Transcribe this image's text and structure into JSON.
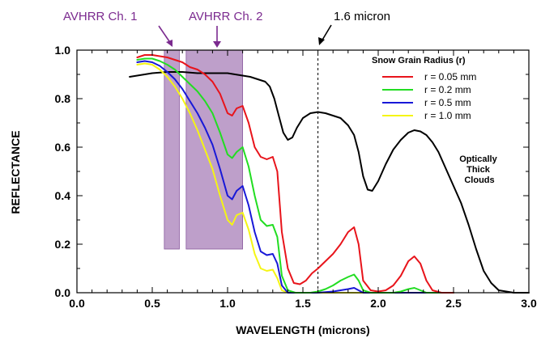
{
  "chart_data": {
    "type": "line",
    "xlabel": "WAVELENGTH (microns)",
    "ylabel": "REFLECTANCE",
    "xlim": [
      0.0,
      3.0
    ],
    "ylim": [
      0.0,
      1.0
    ],
    "x_ticks": [
      "0.0",
      "0.5",
      "1.0",
      "1.5",
      "2.0",
      "2.5",
      "3.0"
    ],
    "y_ticks": [
      "0.0",
      "0.2",
      "0.4",
      "0.6",
      "0.8",
      "1.0"
    ],
    "grid": false,
    "legend_title": "Snow Grain Radius (r)",
    "legend_position": "top-right",
    "bands": [
      {
        "label": "AVHRR Ch. 1",
        "x": [
          0.58,
          0.68
        ],
        "y": [
          0.18,
          1.0
        ],
        "color": "#a87fb8"
      },
      {
        "label": "AVHRR Ch. 2",
        "x": [
          0.725,
          1.1
        ],
        "y": [
          0.18,
          1.0
        ],
        "color": "#a87fb8"
      }
    ],
    "reference_line": {
      "label": "1.6 micron",
      "x": 1.6
    },
    "cloud_label": "Optically\nThick\nClouds",
    "series": [
      {
        "name": "r = 0.05 mm",
        "color": "#e8141b",
        "points": [
          [
            0.4,
            0.97
          ],
          [
            0.45,
            0.98
          ],
          [
            0.5,
            0.98
          ],
          [
            0.55,
            0.975
          ],
          [
            0.6,
            0.97
          ],
          [
            0.65,
            0.96
          ],
          [
            0.7,
            0.95
          ],
          [
            0.75,
            0.93
          ],
          [
            0.8,
            0.92
          ],
          [
            0.85,
            0.9
          ],
          [
            0.9,
            0.87
          ],
          [
            0.95,
            0.82
          ],
          [
            1.0,
            0.74
          ],
          [
            1.03,
            0.73
          ],
          [
            1.06,
            0.76
          ],
          [
            1.1,
            0.77
          ],
          [
            1.14,
            0.7
          ],
          [
            1.18,
            0.6
          ],
          [
            1.22,
            0.56
          ],
          [
            1.26,
            0.55
          ],
          [
            1.3,
            0.56
          ],
          [
            1.33,
            0.5
          ],
          [
            1.36,
            0.25
          ],
          [
            1.4,
            0.1
          ],
          [
            1.44,
            0.04
          ],
          [
            1.48,
            0.035
          ],
          [
            1.52,
            0.05
          ],
          [
            1.56,
            0.08
          ],
          [
            1.6,
            0.1
          ],
          [
            1.65,
            0.13
          ],
          [
            1.7,
            0.16
          ],
          [
            1.75,
            0.2
          ],
          [
            1.8,
            0.25
          ],
          [
            1.84,
            0.27
          ],
          [
            1.87,
            0.2
          ],
          [
            1.9,
            0.05
          ],
          [
            1.95,
            0.01
          ],
          [
            2.0,
            0.005
          ],
          [
            2.05,
            0.01
          ],
          [
            2.1,
            0.03
          ],
          [
            2.15,
            0.07
          ],
          [
            2.2,
            0.13
          ],
          [
            2.24,
            0.15
          ],
          [
            2.28,
            0.12
          ],
          [
            2.32,
            0.05
          ],
          [
            2.36,
            0.01
          ],
          [
            2.42,
            0.0
          ],
          [
            2.5,
            0.0
          ]
        ]
      },
      {
        "name": "r = 0.2 mm",
        "color": "#22dd22",
        "points": [
          [
            0.4,
            0.96
          ],
          [
            0.45,
            0.965
          ],
          [
            0.5,
            0.965
          ],
          [
            0.55,
            0.955
          ],
          [
            0.6,
            0.94
          ],
          [
            0.65,
            0.92
          ],
          [
            0.7,
            0.89
          ],
          [
            0.75,
            0.86
          ],
          [
            0.8,
            0.83
          ],
          [
            0.85,
            0.79
          ],
          [
            0.9,
            0.74
          ],
          [
            0.95,
            0.66
          ],
          [
            1.0,
            0.57
          ],
          [
            1.03,
            0.555
          ],
          [
            1.06,
            0.58
          ],
          [
            1.1,
            0.6
          ],
          [
            1.14,
            0.52
          ],
          [
            1.18,
            0.4
          ],
          [
            1.22,
            0.3
          ],
          [
            1.26,
            0.275
          ],
          [
            1.3,
            0.28
          ],
          [
            1.33,
            0.23
          ],
          [
            1.36,
            0.07
          ],
          [
            1.4,
            0.01
          ],
          [
            1.45,
            0.0
          ],
          [
            1.55,
            0.0
          ],
          [
            1.6,
            0.005
          ],
          [
            1.65,
            0.015
          ],
          [
            1.7,
            0.03
          ],
          [
            1.75,
            0.05
          ],
          [
            1.8,
            0.065
          ],
          [
            1.84,
            0.075
          ],
          [
            1.87,
            0.05
          ],
          [
            1.9,
            0.01
          ],
          [
            1.95,
            0.0
          ],
          [
            2.1,
            0.0
          ],
          [
            2.15,
            0.005
          ],
          [
            2.2,
            0.015
          ],
          [
            2.24,
            0.02
          ],
          [
            2.28,
            0.01
          ],
          [
            2.32,
            0.0
          ],
          [
            2.5,
            0.0
          ]
        ]
      },
      {
        "name": "r = 0.5 mm",
        "color": "#1818d8",
        "points": [
          [
            0.4,
            0.95
          ],
          [
            0.45,
            0.955
          ],
          [
            0.5,
            0.95
          ],
          [
            0.55,
            0.935
          ],
          [
            0.6,
            0.91
          ],
          [
            0.65,
            0.88
          ],
          [
            0.7,
            0.84
          ],
          [
            0.75,
            0.79
          ],
          [
            0.8,
            0.74
          ],
          [
            0.85,
            0.68
          ],
          [
            0.9,
            0.61
          ],
          [
            0.95,
            0.51
          ],
          [
            1.0,
            0.4
          ],
          [
            1.03,
            0.385
          ],
          [
            1.06,
            0.42
          ],
          [
            1.1,
            0.44
          ],
          [
            1.14,
            0.36
          ],
          [
            1.18,
            0.25
          ],
          [
            1.22,
            0.17
          ],
          [
            1.26,
            0.155
          ],
          [
            1.3,
            0.16
          ],
          [
            1.33,
            0.12
          ],
          [
            1.36,
            0.03
          ],
          [
            1.4,
            0.0
          ],
          [
            1.6,
            0.0
          ],
          [
            1.7,
            0.005
          ],
          [
            1.8,
            0.015
          ],
          [
            1.84,
            0.02
          ],
          [
            1.87,
            0.01
          ],
          [
            1.9,
            0.0
          ],
          [
            2.5,
            0.0
          ]
        ]
      },
      {
        "name": "r = 1.0 mm",
        "color": "#f5f514",
        "points": [
          [
            0.4,
            0.94
          ],
          [
            0.45,
            0.945
          ],
          [
            0.5,
            0.94
          ],
          [
            0.55,
            0.92
          ],
          [
            0.6,
            0.89
          ],
          [
            0.65,
            0.85
          ],
          [
            0.7,
            0.8
          ],
          [
            0.75,
            0.74
          ],
          [
            0.8,
            0.67
          ],
          [
            0.85,
            0.59
          ],
          [
            0.9,
            0.51
          ],
          [
            0.95,
            0.4
          ],
          [
            1.0,
            0.3
          ],
          [
            1.03,
            0.28
          ],
          [
            1.06,
            0.32
          ],
          [
            1.1,
            0.33
          ],
          [
            1.14,
            0.26
          ],
          [
            1.18,
            0.16
          ],
          [
            1.22,
            0.1
          ],
          [
            1.26,
            0.09
          ],
          [
            1.3,
            0.095
          ],
          [
            1.33,
            0.06
          ],
          [
            1.36,
            0.01
          ],
          [
            1.4,
            0.0
          ],
          [
            2.5,
            0.0
          ]
        ]
      },
      {
        "name": "Optically Thick Clouds",
        "color": "#000000",
        "points": [
          [
            0.35,
            0.89
          ],
          [
            0.4,
            0.895
          ],
          [
            0.5,
            0.905
          ],
          [
            0.6,
            0.91
          ],
          [
            0.7,
            0.91
          ],
          [
            0.8,
            0.905
          ],
          [
            0.9,
            0.905
          ],
          [
            1.0,
            0.905
          ],
          [
            1.05,
            0.9
          ],
          [
            1.1,
            0.895
          ],
          [
            1.15,
            0.89
          ],
          [
            1.2,
            0.88
          ],
          [
            1.25,
            0.87
          ],
          [
            1.28,
            0.85
          ],
          [
            1.31,
            0.8
          ],
          [
            1.34,
            0.73
          ],
          [
            1.37,
            0.66
          ],
          [
            1.4,
            0.63
          ],
          [
            1.43,
            0.64
          ],
          [
            1.46,
            0.68
          ],
          [
            1.5,
            0.72
          ],
          [
            1.55,
            0.74
          ],
          [
            1.6,
            0.745
          ],
          [
            1.65,
            0.74
          ],
          [
            1.7,
            0.73
          ],
          [
            1.75,
            0.72
          ],
          [
            1.8,
            0.69
          ],
          [
            1.84,
            0.65
          ],
          [
            1.87,
            0.58
          ],
          [
            1.9,
            0.48
          ],
          [
            1.93,
            0.425
          ],
          [
            1.96,
            0.42
          ],
          [
            2.0,
            0.46
          ],
          [
            2.05,
            0.53
          ],
          [
            2.1,
            0.59
          ],
          [
            2.15,
            0.63
          ],
          [
            2.2,
            0.66
          ],
          [
            2.24,
            0.67
          ],
          [
            2.28,
            0.665
          ],
          [
            2.32,
            0.65
          ],
          [
            2.36,
            0.62
          ],
          [
            2.4,
            0.58
          ],
          [
            2.45,
            0.51
          ],
          [
            2.5,
            0.44
          ],
          [
            2.55,
            0.37
          ],
          [
            2.6,
            0.28
          ],
          [
            2.65,
            0.18
          ],
          [
            2.7,
            0.09
          ],
          [
            2.75,
            0.04
          ],
          [
            2.8,
            0.01
          ],
          [
            2.9,
            0.0
          ],
          [
            3.0,
            0.0
          ]
        ]
      }
    ]
  }
}
